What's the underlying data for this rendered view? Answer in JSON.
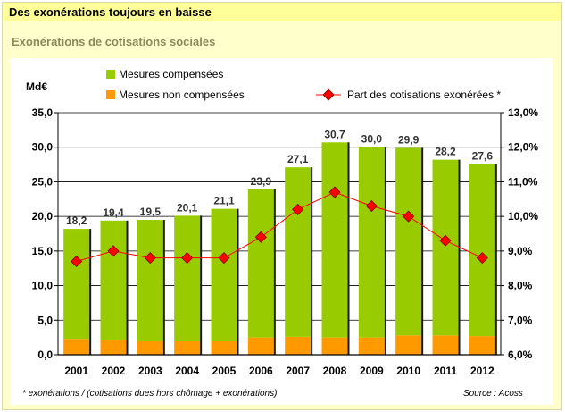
{
  "header": {
    "title": "Des exonérations toujours en baisse",
    "subtitle": "Exonérations de cotisations sociales"
  },
  "chart_data": {
    "type": "bar",
    "categories": [
      "2001",
      "2002",
      "2003",
      "2004",
      "2005",
      "2006",
      "2007",
      "2008",
      "2009",
      "2010",
      "2011",
      "2012"
    ],
    "series": [
      {
        "name": "Mesures compensées",
        "kind": "bar",
        "color": "#99cc00",
        "values": [
          15.9,
          17.2,
          17.5,
          18.1,
          19.1,
          21.4,
          24.5,
          28.2,
          27.5,
          27.1,
          25.4,
          24.9
        ]
      },
      {
        "name": "Mesures non compensées",
        "kind": "bar",
        "color": "#ff9900",
        "values": [
          2.3,
          2.2,
          2.0,
          2.0,
          2.0,
          2.5,
          2.6,
          2.5,
          2.5,
          2.8,
          2.8,
          2.7
        ]
      },
      {
        "name": "Part des cotisations exonérées *",
        "kind": "line",
        "axis": "right",
        "color": "#ff0000",
        "values": [
          8.7,
          9.0,
          8.8,
          8.8,
          8.8,
          9.4,
          10.2,
          10.7,
          10.3,
          10.0,
          9.3,
          8.8
        ]
      }
    ],
    "totals_labels": [
      "18,2",
      "19,4",
      "19,5",
      "20,1",
      "21,1",
      "23,9",
      "27,1",
      "30,7",
      "30,0",
      "29,9",
      "28,2",
      "27,6"
    ],
    "ylabel": "Md€",
    "ylim": [
      0,
      35
    ],
    "y_ticks": [
      "0,0",
      "5,0",
      "10,0",
      "15,0",
      "20,0",
      "25,0",
      "30,0",
      "35,0"
    ],
    "y2lim": [
      6,
      13
    ],
    "y2_ticks": [
      "6,0%",
      "7,0%",
      "8,0%",
      "9,0%",
      "10,0%",
      "11,0%",
      "12,0%",
      "13,0%"
    ],
    "grid": true,
    "legend_position": "top",
    "footnote": "* exonérations / (cotisations dues hors chômage + exonérations)",
    "source": "Source : Acoss"
  }
}
